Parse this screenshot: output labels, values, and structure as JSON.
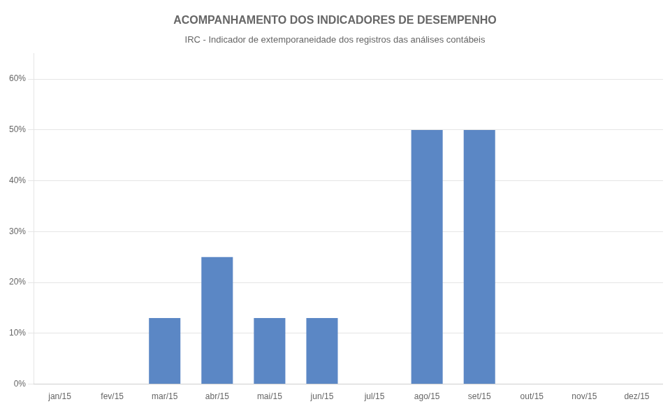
{
  "chart_data": {
    "type": "bar",
    "title": "ACOMPANHAMENTO DOS INDICADORES DE DESEMPENHO",
    "subtitle": "IRC - Indicador de extemporaneidade dos registros das análises contábeis",
    "categories": [
      "jan/15",
      "fev/15",
      "mar/15",
      "abr/15",
      "mai/15",
      "jun/15",
      "jul/15",
      "ago/15",
      "set/15",
      "out/15",
      "nov/15",
      "dez/15"
    ],
    "values": [
      0,
      0,
      0.13,
      0.25,
      0.13,
      0.13,
      0,
      0.5,
      0.5,
      0,
      0,
      0
    ],
    "color": "#5b87c5",
    "ylim": [
      0,
      0.65
    ],
    "yticks": [
      {
        "value": 0,
        "label": "0%"
      },
      {
        "value": 0.1,
        "label": "10%"
      },
      {
        "value": 0.2,
        "label": "20%"
      },
      {
        "value": 0.3,
        "label": "30%"
      },
      {
        "value": 0.4,
        "label": "40%"
      },
      {
        "value": 0.5,
        "label": "50%"
      },
      {
        "value": 0.6,
        "label": "60%"
      }
    ],
    "grid": true
  }
}
